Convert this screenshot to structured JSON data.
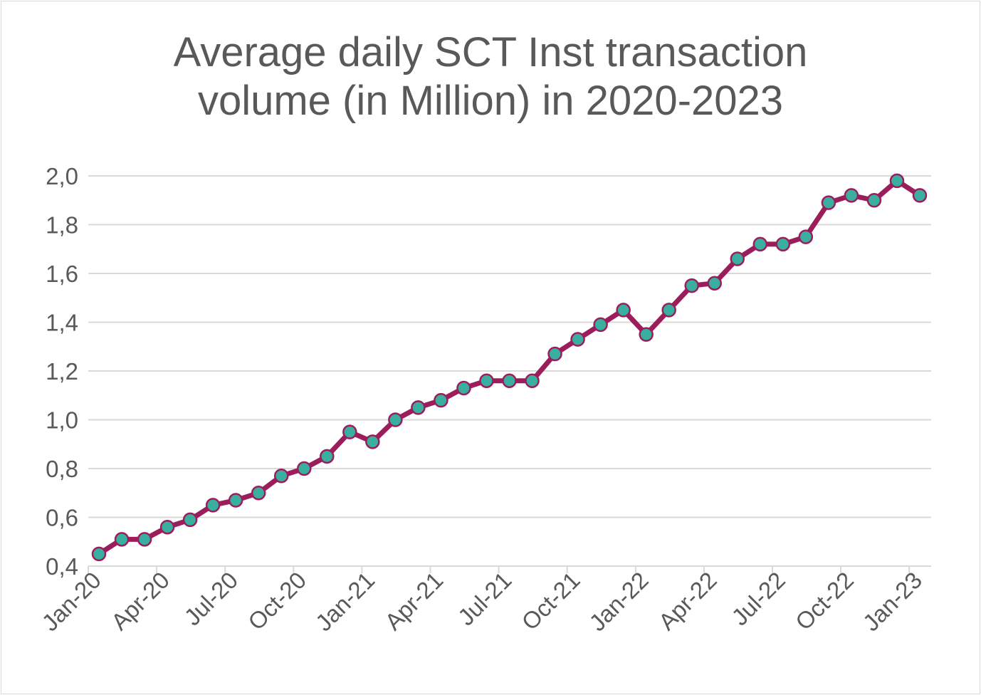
{
  "chart_data": {
    "type": "line",
    "title_lines": [
      "Average daily SCT Inst transaction",
      "volume (in Million) in 2020-2023"
    ],
    "xlabel": "",
    "ylabel": "",
    "ylim": [
      0.4,
      2.0
    ],
    "yticks": [
      "0,4",
      "0,6",
      "0,8",
      "1,0",
      "1,2",
      "1,4",
      "1,6",
      "1,8",
      "2,0"
    ],
    "xticks": [
      "Jan-20",
      "Apr-20",
      "Jul-20",
      "Oct-20",
      "Jan-21",
      "Apr-21",
      "Jul-21",
      "Oct-21",
      "Jan-22",
      "Apr-22",
      "Jul-22",
      "Oct-22",
      "Jan-23"
    ],
    "grid": "horizontal",
    "legend": "none",
    "colors": {
      "line": "#9C1D5B",
      "marker_fill": "#3AAE9F",
      "grid": "#d9d9d9",
      "text": "#595959"
    },
    "x": [
      "Jan-20",
      "Feb-20",
      "Mar-20",
      "Apr-20",
      "May-20",
      "Jun-20",
      "Jul-20",
      "Aug-20",
      "Sep-20",
      "Oct-20",
      "Nov-20",
      "Dec-20",
      "Jan-21",
      "Feb-21",
      "Mar-21",
      "Apr-21",
      "May-21",
      "Jun-21",
      "Jul-21",
      "Aug-21",
      "Sep-21",
      "Oct-21",
      "Nov-21",
      "Dec-21",
      "Jan-22",
      "Feb-22",
      "Mar-22",
      "Apr-22",
      "May-22",
      "Jun-22",
      "Jul-22",
      "Aug-22",
      "Sep-22",
      "Oct-22",
      "Nov-22",
      "Dec-22",
      "Jan-23"
    ],
    "values": [
      0.45,
      0.51,
      0.51,
      0.56,
      0.59,
      0.65,
      0.67,
      0.7,
      0.77,
      0.8,
      0.85,
      0.95,
      0.91,
      1.0,
      1.05,
      1.08,
      1.13,
      1.16,
      1.16,
      1.16,
      1.27,
      1.33,
      1.39,
      1.45,
      1.35,
      1.45,
      1.55,
      1.56,
      1.66,
      1.72,
      1.72,
      1.75,
      1.89,
      1.92,
      1.9,
      1.98,
      1.92
    ]
  }
}
